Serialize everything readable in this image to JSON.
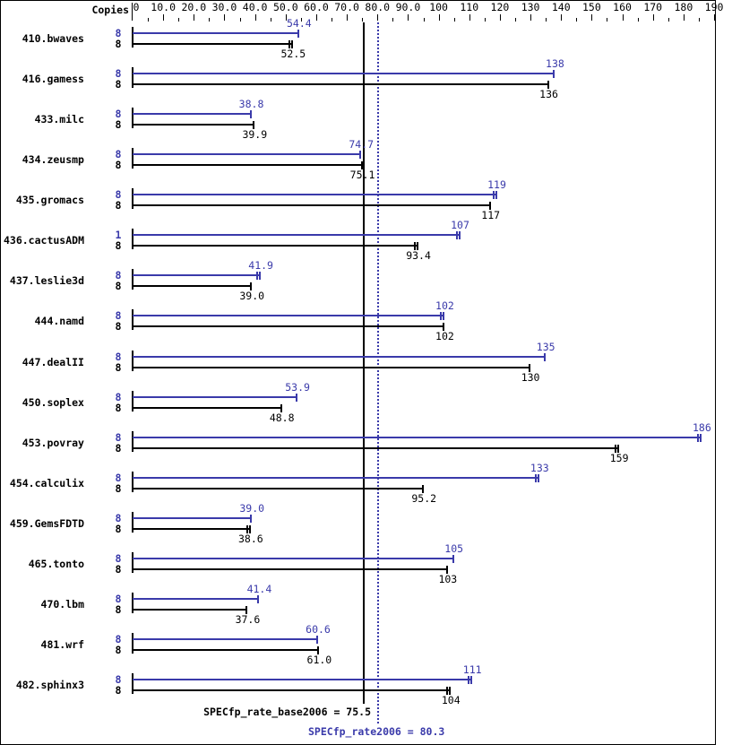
{
  "header": {
    "copies_label": "Copies"
  },
  "colors": {
    "peak": "#3a3aaa",
    "base": "#000000",
    "background": "#ffffff"
  },
  "chart_data": {
    "type": "bar",
    "orientation": "horizontal",
    "title": "",
    "xlabel": "",
    "ylabel": "Copies",
    "x_axis": {
      "min": 0,
      "max": 190,
      "major_tick_interval": 10,
      "minor_tick_interval": 5,
      "tick_labels": [
        "0",
        "10.0",
        "20.0",
        "30.0",
        "40.0",
        "50.0",
        "60.0",
        "70.0",
        "80.0",
        "90.0",
        "100",
        "110",
        "120",
        "130",
        "140",
        "150",
        "160",
        "170",
        "180",
        "190"
      ]
    },
    "series": [
      {
        "name": "peak (SPECfp_rate2006)",
        "color": "#3a3aaa"
      },
      {
        "name": "base (SPECfp_rate_base2006)",
        "color": "#000000"
      }
    ],
    "benchmarks": [
      {
        "name": "410.bwaves",
        "peak": {
          "copies": "8",
          "value": 54.4,
          "label": "54.4",
          "cap": "single"
        },
        "base": {
          "copies": "8",
          "value": 52.5,
          "label": "52.5",
          "cap": "double"
        }
      },
      {
        "name": "416.gamess",
        "peak": {
          "copies": "8",
          "value": 138,
          "label": "138",
          "cap": "single"
        },
        "base": {
          "copies": "8",
          "value": 136,
          "label": "136",
          "cap": "single"
        }
      },
      {
        "name": "433.milc",
        "peak": {
          "copies": "8",
          "value": 38.8,
          "label": "38.8",
          "cap": "single"
        },
        "base": {
          "copies": "8",
          "value": 39.9,
          "label": "39.9",
          "cap": "single"
        }
      },
      {
        "name": "434.zeusmp",
        "peak": {
          "copies": "8",
          "value": 74.7,
          "label": "74.7",
          "cap": "single"
        },
        "base": {
          "copies": "8",
          "value": 75.1,
          "label": "75.1",
          "cap": "single"
        }
      },
      {
        "name": "435.gromacs",
        "peak": {
          "copies": "8",
          "value": 119,
          "label": "119",
          "cap": "double"
        },
        "base": {
          "copies": "8",
          "value": 117,
          "label": "117",
          "cap": "single"
        }
      },
      {
        "name": "436.cactusADM",
        "peak": {
          "copies": "1",
          "value": 107,
          "label": "107",
          "cap": "double"
        },
        "base": {
          "copies": "8",
          "value": 93.4,
          "label": "93.4",
          "cap": "double"
        }
      },
      {
        "name": "437.leslie3d",
        "peak": {
          "copies": "8",
          "value": 41.9,
          "label": "41.9",
          "cap": "double"
        },
        "base": {
          "copies": "8",
          "value": 39.0,
          "label": "39.0",
          "cap": "single"
        }
      },
      {
        "name": "444.namd",
        "peak": {
          "copies": "8",
          "value": 102,
          "label": "102",
          "cap": "double"
        },
        "base": {
          "copies": "8",
          "value": 102,
          "label": "102",
          "cap": "single"
        }
      },
      {
        "name": "447.dealII",
        "peak": {
          "copies": "8",
          "value": 135,
          "label": "135",
          "cap": "single"
        },
        "base": {
          "copies": "8",
          "value": 130,
          "label": "130",
          "cap": "single"
        }
      },
      {
        "name": "450.soplex",
        "peak": {
          "copies": "8",
          "value": 53.9,
          "label": "53.9",
          "cap": "single"
        },
        "base": {
          "copies": "8",
          "value": 48.8,
          "label": "48.8",
          "cap": "single"
        }
      },
      {
        "name": "453.povray",
        "peak": {
          "copies": "8",
          "value": 186,
          "label": "186",
          "cap": "double"
        },
        "base": {
          "copies": "8",
          "value": 159,
          "label": "159",
          "cap": "double"
        }
      },
      {
        "name": "454.calculix",
        "peak": {
          "copies": "8",
          "value": 133,
          "label": "133",
          "cap": "double"
        },
        "base": {
          "copies": "8",
          "value": 95.2,
          "label": "95.2",
          "cap": "single"
        }
      },
      {
        "name": "459.GemsFDTD",
        "peak": {
          "copies": "8",
          "value": 39.0,
          "label": "39.0",
          "cap": "single"
        },
        "base": {
          "copies": "8",
          "value": 38.6,
          "label": "38.6",
          "cap": "double"
        }
      },
      {
        "name": "465.tonto",
        "peak": {
          "copies": "8",
          "value": 105,
          "label": "105",
          "cap": "single"
        },
        "base": {
          "copies": "8",
          "value": 103,
          "label": "103",
          "cap": "single"
        }
      },
      {
        "name": "470.lbm",
        "peak": {
          "copies": "8",
          "value": 41.4,
          "label": "41.4",
          "cap": "single"
        },
        "base": {
          "copies": "8",
          "value": 37.6,
          "label": "37.6",
          "cap": "single"
        }
      },
      {
        "name": "481.wrf",
        "peak": {
          "copies": "8",
          "value": 60.6,
          "label": "60.6",
          "cap": "single"
        },
        "base": {
          "copies": "8",
          "value": 61.0,
          "label": "61.0",
          "cap": "single"
        }
      },
      {
        "name": "482.sphinx3",
        "peak": {
          "copies": "8",
          "value": 111,
          "label": "111",
          "cap": "double"
        },
        "base": {
          "copies": "8",
          "value": 104,
          "label": "104",
          "cap": "double"
        }
      }
    ],
    "reference_lines": [
      {
        "id": "base",
        "label": "SPECfp_rate_base2006 = 75.5",
        "value": 75.5,
        "style": "solid",
        "color": "#000000"
      },
      {
        "id": "peak",
        "label": "SPECfp_rate2006 = 80.3",
        "value": 80.3,
        "style": "dotted",
        "color": "#3a3aaa"
      }
    ],
    "legend_position": "none",
    "grid": false
  }
}
